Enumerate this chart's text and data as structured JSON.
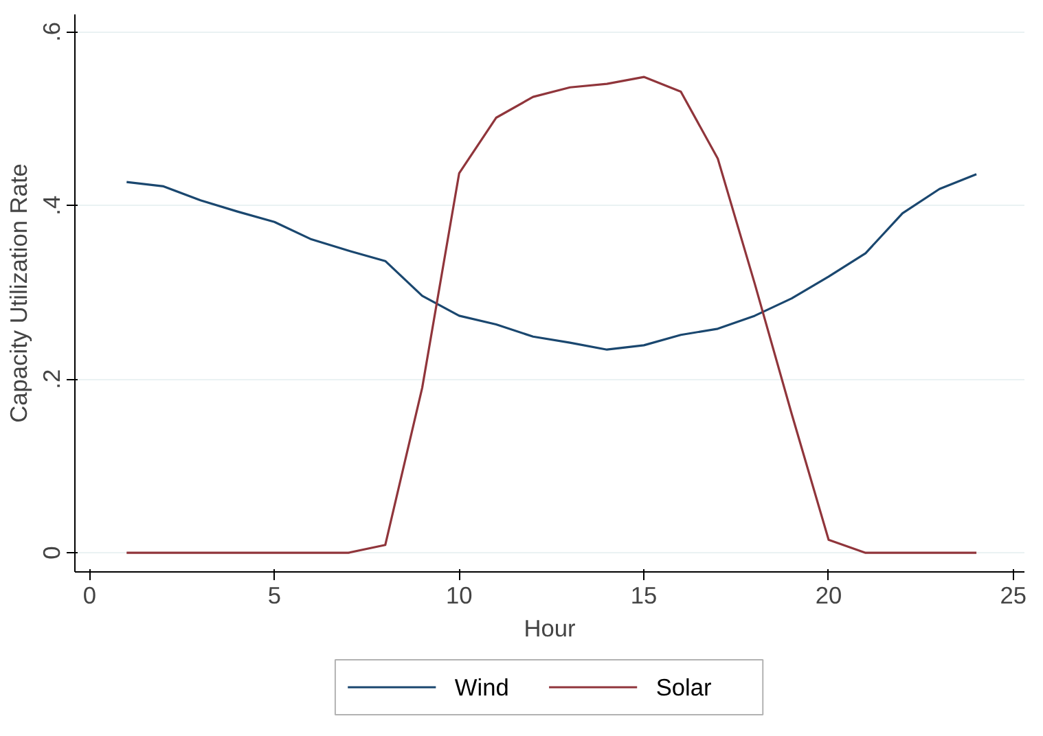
{
  "chart_data": {
    "type": "line",
    "xlabel": "Hour",
    "ylabel": "Capacity Utilization Rate",
    "x": [
      1,
      2,
      3,
      4,
      5,
      6,
      7,
      8,
      9,
      10,
      11,
      12,
      13,
      14,
      15,
      16,
      17,
      18,
      19,
      20,
      21,
      22,
      23,
      24
    ],
    "series": [
      {
        "name": "Wind",
        "color": "#1a476f",
        "values": [
          0.427,
          0.422,
          0.406,
          0.393,
          0.381,
          0.361,
          0.348,
          0.336,
          0.296,
          0.273,
          0.263,
          0.249,
          0.242,
          0.234,
          0.239,
          0.251,
          0.258,
          0.273,
          0.293,
          0.318,
          0.345,
          0.391,
          0.419,
          0.436
        ]
      },
      {
        "name": "Solar",
        "color": "#90353b",
        "values": [
          0,
          0,
          0,
          0,
          0,
          0,
          0,
          0.009,
          0.19,
          0.437,
          0.501,
          0.525,
          0.536,
          0.54,
          0.548,
          0.531,
          0.454,
          0.31,
          0.16,
          0.015,
          0,
          0,
          0,
          0
        ]
      }
    ],
    "xlim": [
      -0.4,
      25.3
    ],
    "ylim": [
      -0.022,
      0.62
    ],
    "xticks": [
      0,
      5,
      10,
      15,
      20,
      25
    ],
    "yticks": [
      {
        "value": 0,
        "label": "0"
      },
      {
        "value": 0.2,
        "label": ".2"
      },
      {
        "value": 0.4,
        "label": ".4"
      },
      {
        "value": 0.6,
        "label": ".6"
      }
    ],
    "grid": "y",
    "legend": "bottom",
    "marker": "none",
    "line_style": "solid"
  }
}
